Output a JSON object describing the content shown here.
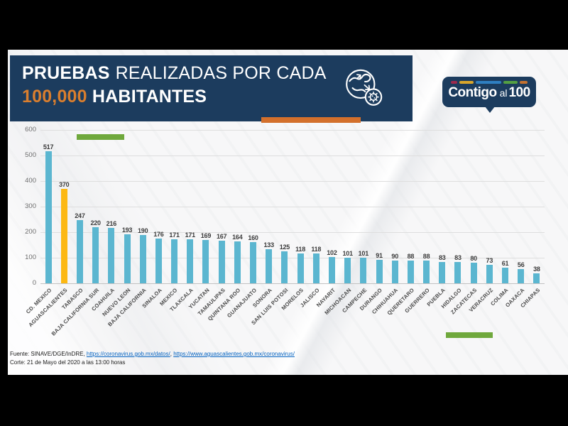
{
  "header": {
    "title_line1_bold": "PRUEBAS",
    "title_line1_rest": "REALIZADAS POR CADA",
    "title_line2_accent": "100,000",
    "title_line2_rest": " HABITANTES",
    "icon": "globe-virus-icon"
  },
  "logo": {
    "word1": "Contigo",
    "word2": "al",
    "word3": "100",
    "dash_colors": [
      "#9e2b4e",
      "#d9a62b",
      "#2f7fc1",
      "#55a042",
      "#c4712f"
    ],
    "dash_widths": [
      10,
      21,
      38,
      21,
      12
    ]
  },
  "chart_data": {
    "type": "bar",
    "title": "Pruebas realizadas por cada 100,000 habitantes",
    "xlabel": "",
    "ylabel": "",
    "categories": [
      "CD. MEXICO",
      "AGUASCALIENTES",
      "TABASCO",
      "BAJA CALIFORNIA SUR",
      "COAHUILA",
      "NUEVO LEON",
      "BAJA CALIFORNIA",
      "SINALOA",
      "MEXICO",
      "TLAXCALA",
      "YUCATAN",
      "TAMAULIPAS",
      "QUINTANA ROO",
      "GUANAJUATO",
      "SONORA",
      "SAN LUIS POTOSI",
      "MORELOS",
      "JALISCO",
      "NAYARIT",
      "MICHOACAN",
      "CAMPECHE",
      "DURANGO",
      "CHIHUAHUA",
      "QUERETARO",
      "GUERRERO",
      "PUEBLA",
      "HIDALGO",
      "ZACATECAS",
      "VERACRUZ",
      "COLIMA",
      "OAXACA",
      "CHIAPAS"
    ],
    "values": [
      517,
      370,
      247,
      220,
      216,
      193,
      190,
      176,
      171,
      171,
      169,
      167,
      164,
      160,
      133,
      125,
      118,
      118,
      102,
      101,
      101,
      91,
      90,
      88,
      88,
      83,
      83,
      80,
      73,
      61,
      56,
      38
    ],
    "highlight_index": 1,
    "bar_color": "#5bb6d0",
    "highlight_color": "#fcb813",
    "ylim": [
      0,
      600
    ],
    "yticks": [
      0,
      100,
      200,
      300,
      400,
      500,
      600
    ],
    "grid": true,
    "legend": false
  },
  "footer": {
    "source_label": "Fuente: SINAVE/DGE/InDRE, ",
    "link1": "https://coronavirus.gob.mx/datos/",
    "link_separator": ", ",
    "link2": "https://www.aguascalientes.gob.mx/coronavirus/",
    "cutoff_label": "Corte: 21 de Mayo del 2020 a las 13:00 horas"
  },
  "colors": {
    "navy": "#1c3c5e",
    "orange_accent": "#d3702c",
    "title_orange": "#d97e2e",
    "green_accent": "#6fa83c",
    "bar_blue": "#5bb6d0",
    "bar_gold": "#fcb813",
    "link_blue": "#0563c1",
    "frame_black": "#000000"
  }
}
